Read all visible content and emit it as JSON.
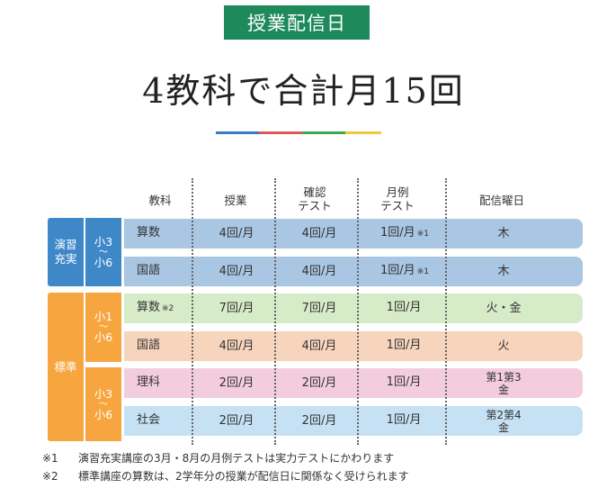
{
  "badge": "授業配信日",
  "title": "4教科で合計月15回",
  "colors": {
    "accent_green": "#1e8a5c",
    "blue_group": "#3f88c8",
    "orange_group": "#f7a63f",
    "bar": [
      "#3c79be",
      "#e05757",
      "#37a856",
      "#f0c840"
    ]
  },
  "headers": {
    "subject": "教科",
    "lesson": "授業",
    "check_test": [
      "確認",
      "テスト"
    ],
    "monthly_test": [
      "月例",
      "テスト"
    ],
    "days": "配信曜日"
  },
  "groups": {
    "enshu": [
      "演習",
      "充実"
    ],
    "hyojun": "標準"
  },
  "grades": {
    "g36a": {
      "top": "小3",
      "tilde": "〜",
      "bottom": "小6"
    },
    "g16": {
      "top": "小1",
      "tilde": "〜",
      "bottom": "小6"
    },
    "g36b": {
      "top": "小3",
      "tilde": "〜",
      "bottom": "小6"
    }
  },
  "rows": [
    {
      "subject": "算数",
      "subject_note": "",
      "lesson": "4回/月",
      "check": "4回/月",
      "monthly": "1回/月",
      "monthly_note": "※1",
      "day": [
        "木"
      ]
    },
    {
      "subject": "国語",
      "subject_note": "",
      "lesson": "4回/月",
      "check": "4回/月",
      "monthly": "1回/月",
      "monthly_note": "※1",
      "day": [
        "木"
      ]
    },
    {
      "subject": "算数",
      "subject_note": "※2",
      "lesson": "7回/月",
      "check": "7回/月",
      "monthly": "1回/月",
      "monthly_note": "",
      "day": [
        "火・金"
      ]
    },
    {
      "subject": "国語",
      "subject_note": "",
      "lesson": "4回/月",
      "check": "4回/月",
      "monthly": "1回/月",
      "monthly_note": "",
      "day": [
        "火"
      ]
    },
    {
      "subject": "理科",
      "subject_note": "",
      "lesson": "2回/月",
      "check": "2回/月",
      "monthly": "1回/月",
      "monthly_note": "",
      "day": [
        "第1第3",
        "金"
      ]
    },
    {
      "subject": "社会",
      "subject_note": "",
      "lesson": "2回/月",
      "check": "2回/月",
      "monthly": "1回/月",
      "monthly_note": "",
      "day": [
        "第2第4",
        "金"
      ]
    }
  ],
  "row_colors": [
    "#a9c6e3",
    "#a9c6e3",
    "#d6ebc8",
    "#f7d5bd",
    "#f4cddd",
    "#c6e1f4"
  ],
  "footnotes": [
    {
      "mark": "※1",
      "text": "演習充実講座の3月・8月の月例テストは実力テストにかわります"
    },
    {
      "mark": "※2",
      "text": "標準講座の算数は、2学年分の授業が配信日に関係なく受けられます"
    }
  ]
}
